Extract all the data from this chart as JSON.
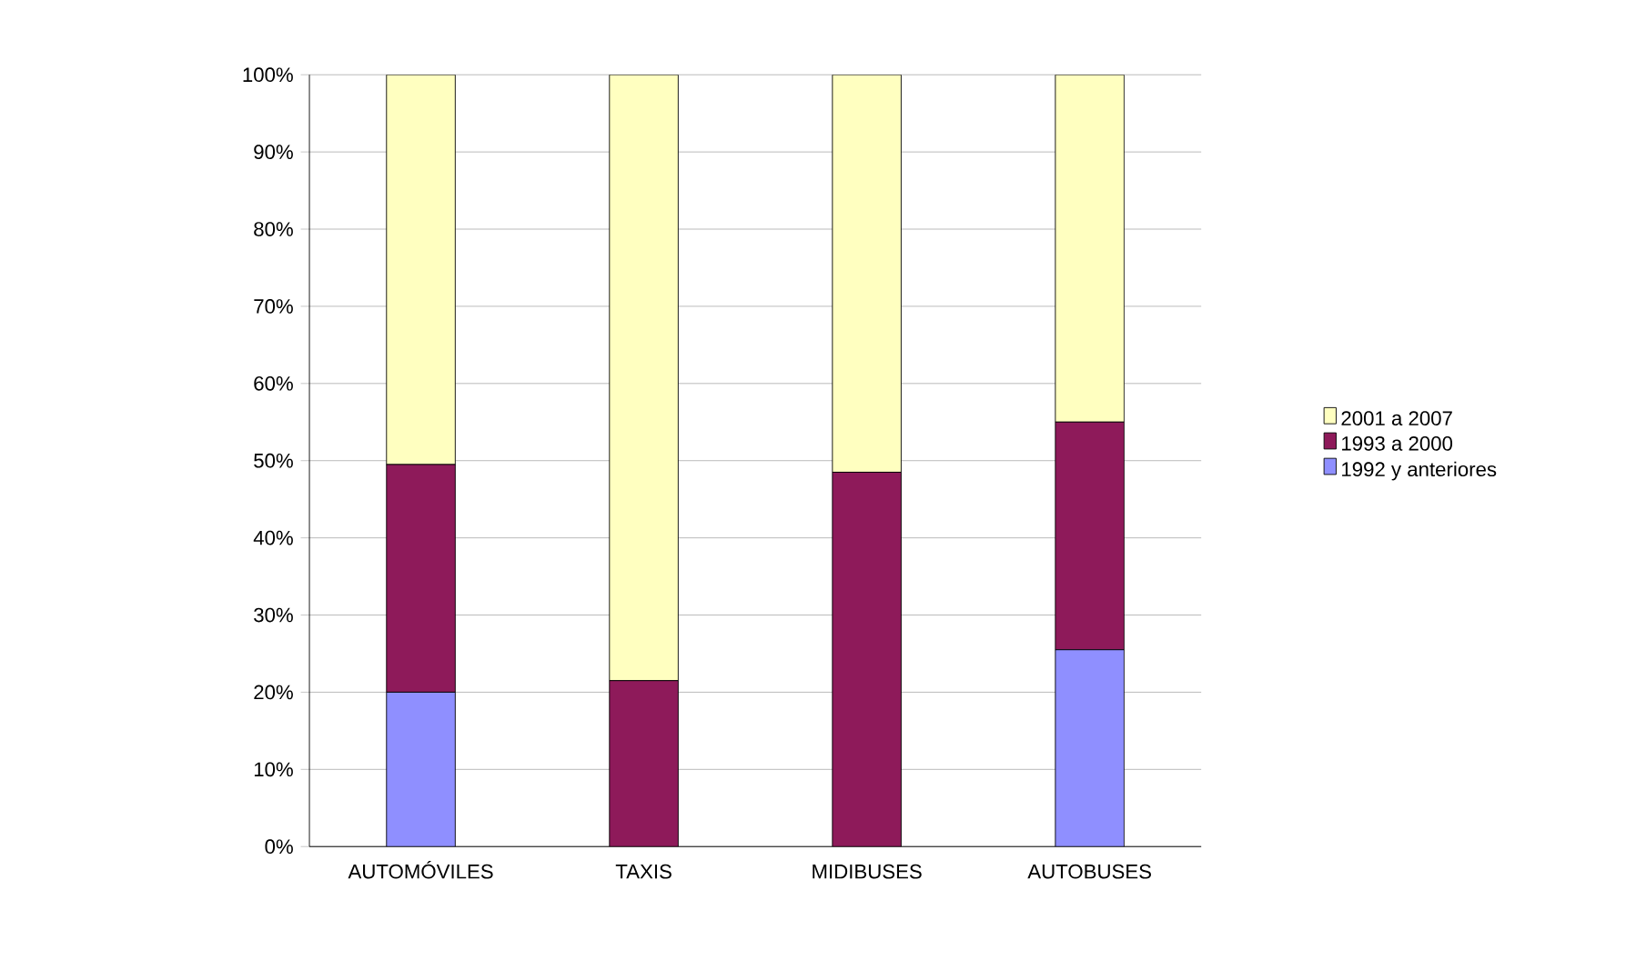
{
  "chart_data": {
    "type": "bar",
    "stacked": true,
    "categories": [
      "AUTOMÓVILES",
      "TAXIS",
      "MIDIBUSES",
      "AUTOBUSES"
    ],
    "series": [
      {
        "name": "1992 y anteriores",
        "color": "#8f8fff",
        "values": [
          20,
          0,
          0,
          25.5
        ]
      },
      {
        "name": "1993 a 2000",
        "color": "#8e1a5a",
        "values": [
          29.5,
          21.5,
          48.5,
          29.5
        ]
      },
      {
        "name": "2001 a 2007",
        "color": "#ffffc0",
        "values": [
          50.5,
          78.5,
          51.5,
          45
        ]
      }
    ],
    "ylim": [
      0,
      100
    ],
    "yticks": [
      {
        "value": 0,
        "label": "0%"
      },
      {
        "value": 10,
        "label": "10%"
      },
      {
        "value": 20,
        "label": "20%"
      },
      {
        "value": 30,
        "label": "30%"
      },
      {
        "value": 40,
        "label": "40%"
      },
      {
        "value": 50,
        "label": "50%"
      },
      {
        "value": 60,
        "label": "60%"
      },
      {
        "value": 70,
        "label": "70%"
      },
      {
        "value": 80,
        "label": "80%"
      },
      {
        "value": 90,
        "label": "90%"
      },
      {
        "value": 100,
        "label": "100%"
      }
    ],
    "grid": "y",
    "legend": "right"
  }
}
